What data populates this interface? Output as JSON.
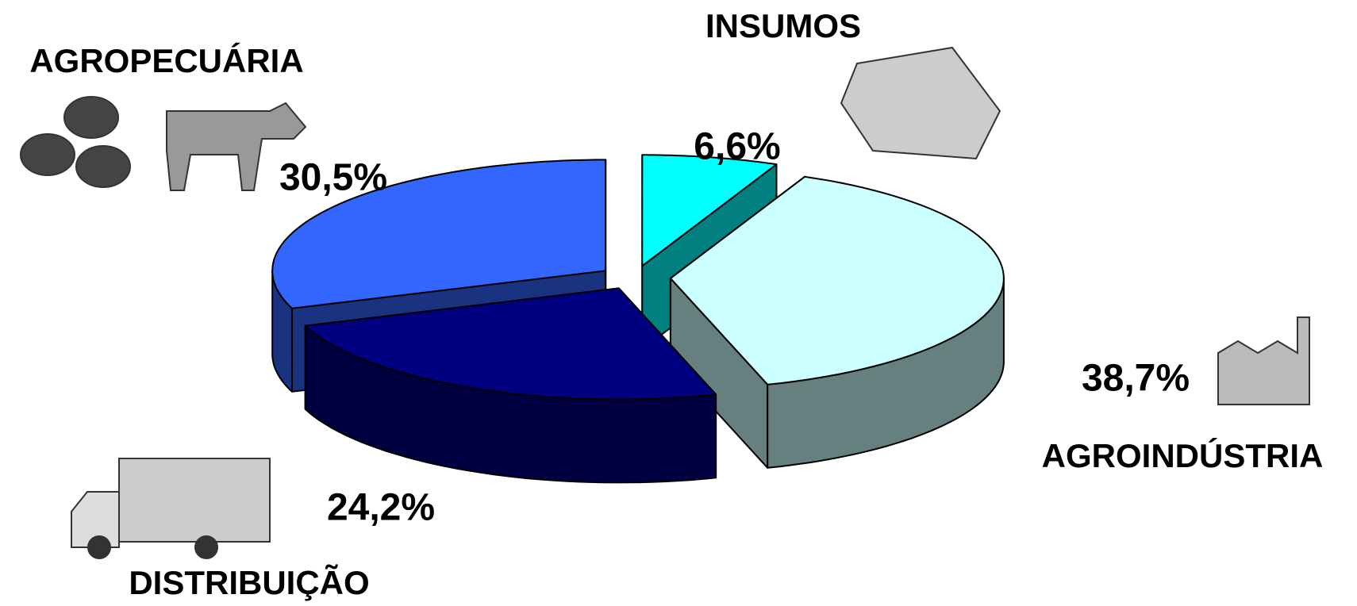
{
  "chart_data": {
    "type": "pie3d",
    "categories": [
      "INSUMOS",
      "AGROINDÚSTRIA",
      "DISTRIBUIÇÃO",
      "AGROPECUÁRIA"
    ],
    "values": [
      6.6,
      38.7,
      24.2,
      30.5
    ],
    "value_labels": [
      "6,6%",
      "38,7%",
      "24,2%",
      "30,5%"
    ],
    "colors": [
      "#00ffff",
      "#ccffff",
      "#000080",
      "#3366ff"
    ],
    "side_colors": [
      "#008080",
      "#668080",
      "#000040",
      "#1a3380"
    ],
    "exploded": true
  }
}
